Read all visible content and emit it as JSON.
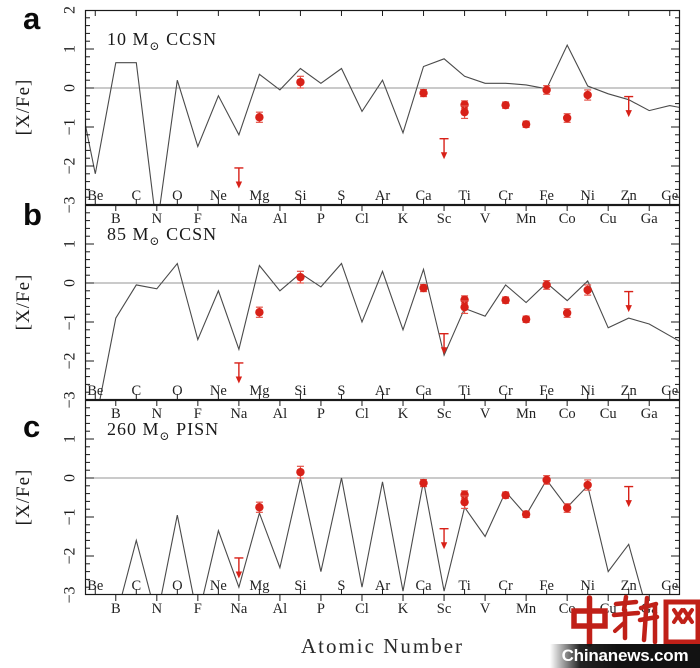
{
  "figure": {
    "xlabel": "Atomic Number",
    "ylabel": "[X/Fe]",
    "panels": [
      {
        "letter": "a",
        "title_prefix": "10 M",
        "title_sun": "⊙",
        "title_suffix": " CCSN"
      },
      {
        "letter": "b",
        "title_prefix": "85 M",
        "title_sun": "⊙",
        "title_suffix": " CCSN"
      },
      {
        "letter": "c",
        "title_prefix": "260 M",
        "title_sun": "⊙",
        "title_suffix": " PISN"
      }
    ]
  },
  "chart_data": {
    "type": "line",
    "xlabel": "Atomic Number",
    "ylabel": "[X/Fe]",
    "xlim": [
      3.5,
      32.5
    ],
    "ylim": [
      -3,
      2
    ],
    "grid": false,
    "y_major_ticks": [
      2,
      1,
      0,
      -1,
      -2,
      -3
    ],
    "y_minor_step": 0.2,
    "elements_even": [
      {
        "symbol": "Be",
        "z": 4
      },
      {
        "symbol": "C",
        "z": 6
      },
      {
        "symbol": "O",
        "z": 8
      },
      {
        "symbol": "Ne",
        "z": 10
      },
      {
        "symbol": "Mg",
        "z": 12
      },
      {
        "symbol": "Si",
        "z": 14
      },
      {
        "symbol": "S",
        "z": 16
      },
      {
        "symbol": "Ar",
        "z": 18
      },
      {
        "symbol": "Ca",
        "z": 20
      },
      {
        "symbol": "Ti",
        "z": 22
      },
      {
        "symbol": "Cr",
        "z": 24
      },
      {
        "symbol": "Fe",
        "z": 26
      },
      {
        "symbol": "Ni",
        "z": 28
      },
      {
        "symbol": "Zn",
        "z": 30
      },
      {
        "symbol": "Ge",
        "z": 32
      }
    ],
    "elements_odd": [
      {
        "symbol": "B",
        "z": 5
      },
      {
        "symbol": "N",
        "z": 7
      },
      {
        "symbol": "F",
        "z": 9
      },
      {
        "symbol": "Na",
        "z": 11
      },
      {
        "symbol": "Al",
        "z": 13
      },
      {
        "symbol": "P",
        "z": 15
      },
      {
        "symbol": "Cl",
        "z": 17
      },
      {
        "symbol": "K",
        "z": 19
      },
      {
        "symbol": "Sc",
        "z": 21
      },
      {
        "symbol": "V",
        "z": 23
      },
      {
        "symbol": "Mn",
        "z": 25
      },
      {
        "symbol": "Co",
        "z": 27
      },
      {
        "symbol": "Cu",
        "z": 29
      },
      {
        "symbol": "Ga",
        "z": 31
      }
    ],
    "panels": [
      {
        "name": "10 M⊙ CCSN model",
        "model_z": [
          3.5,
          4,
          5,
          6,
          7,
          8,
          9,
          10,
          11,
          12,
          13,
          14,
          15,
          16,
          17,
          18,
          19,
          20,
          21,
          22,
          23,
          24,
          25,
          26,
          27,
          28,
          29,
          30,
          31,
          32,
          32.5
        ],
        "model_xfe": [
          -0.9,
          -2.2,
          0.65,
          0.65,
          -3.6,
          0.2,
          -1.5,
          -0.2,
          -1.2,
          0.35,
          -0.05,
          0.5,
          0.12,
          0.5,
          -0.6,
          0.2,
          -1.15,
          0.55,
          0.75,
          0.3,
          0.12,
          0.12,
          0.08,
          -0.02,
          1.1,
          0.05,
          -0.15,
          -0.3,
          -0.58,
          -0.45,
          -0.5
        ]
      },
      {
        "name": "85 M⊙ CCSN model",
        "model_z": [
          3.5,
          4,
          5,
          6,
          7,
          8,
          9,
          10,
          11,
          12,
          13,
          14,
          15,
          16,
          17,
          18,
          19,
          20,
          21,
          22,
          23,
          24,
          25,
          26,
          27,
          28,
          29,
          30,
          31,
          32,
          32.5
        ],
        "model_xfe": [
          -3.6,
          -3.6,
          -0.9,
          -0.05,
          -0.15,
          0.5,
          -1.45,
          -0.2,
          -1.7,
          0.45,
          -0.2,
          0.25,
          -0.1,
          0.5,
          -1.0,
          0.3,
          -1.2,
          0.35,
          -1.85,
          -0.65,
          -0.85,
          -0.05,
          -0.5,
          0.0,
          -0.45,
          0.05,
          -1.15,
          -0.9,
          -1.05,
          -1.35,
          -1.5
        ]
      },
      {
        "name": "260 M⊙ PISN model",
        "model_z": [
          3.5,
          4,
          5,
          6,
          7,
          8,
          9,
          10,
          11,
          12,
          13,
          14,
          15,
          16,
          17,
          18,
          19,
          20,
          21,
          22,
          23,
          24,
          25,
          26,
          27,
          28,
          29,
          30,
          31,
          32
        ],
        "model_xfe": [
          -3.6,
          -3.6,
          -3.6,
          -1.6,
          -3.6,
          -0.95,
          -3.6,
          -1.35,
          -2.8,
          -0.9,
          -2.3,
          0.0,
          -2.4,
          0.0,
          -2.8,
          -0.1,
          -2.9,
          -0.08,
          -2.9,
          -0.75,
          -1.5,
          -0.35,
          -0.95,
          -0.05,
          -0.75,
          -0.2,
          -2.4,
          -1.7,
          -3.6,
          -3.6
        ]
      }
    ],
    "observed_points": [
      {
        "element": "Mg",
        "z": 12,
        "xfe": -0.75,
        "err": 0.13
      },
      {
        "element": "Si",
        "z": 14,
        "xfe": 0.15,
        "err": 0.15
      },
      {
        "element": "Ca",
        "z": 20,
        "xfe": -0.13,
        "err": 0.09
      },
      {
        "element": "Ti",
        "z": 22,
        "xfe": -0.43,
        "err": 0.1
      },
      {
        "element": "Ti",
        "z": 22,
        "xfe": -0.62,
        "err": 0.16
      },
      {
        "element": "Cr",
        "z": 24,
        "xfe": -0.44,
        "err": 0.08
      },
      {
        "element": "Mn",
        "z": 25,
        "xfe": -0.93,
        "err": 0.08
      },
      {
        "element": "Fe",
        "z": 26,
        "xfe": -0.05,
        "err": 0.11
      },
      {
        "element": "Co",
        "z": 27,
        "xfe": -0.77,
        "err": 0.11
      },
      {
        "element": "Ni",
        "z": 28,
        "xfe": -0.18,
        "err": 0.13
      }
    ],
    "observed_upper_limits": [
      {
        "element": "Na",
        "z": 11,
        "xfe": -2.05,
        "arrow_tip": -2.55
      },
      {
        "element": "Sc",
        "z": 21,
        "xfe": -1.3,
        "arrow_tip": -1.8
      },
      {
        "element": "Zn",
        "z": 30,
        "xfe": -0.22,
        "arrow_tip": -0.72
      }
    ]
  },
  "watermark": {
    "logo_text": "中新网",
    "site_text": "Chinanews.com"
  },
  "colors": {
    "data_red": "#d82118",
    "errbar_red": "#e35248",
    "model_line": "#4a4a4a",
    "zero_line": "#969696",
    "frame": "#1a1a1a",
    "watermark_red": "#c02018"
  }
}
